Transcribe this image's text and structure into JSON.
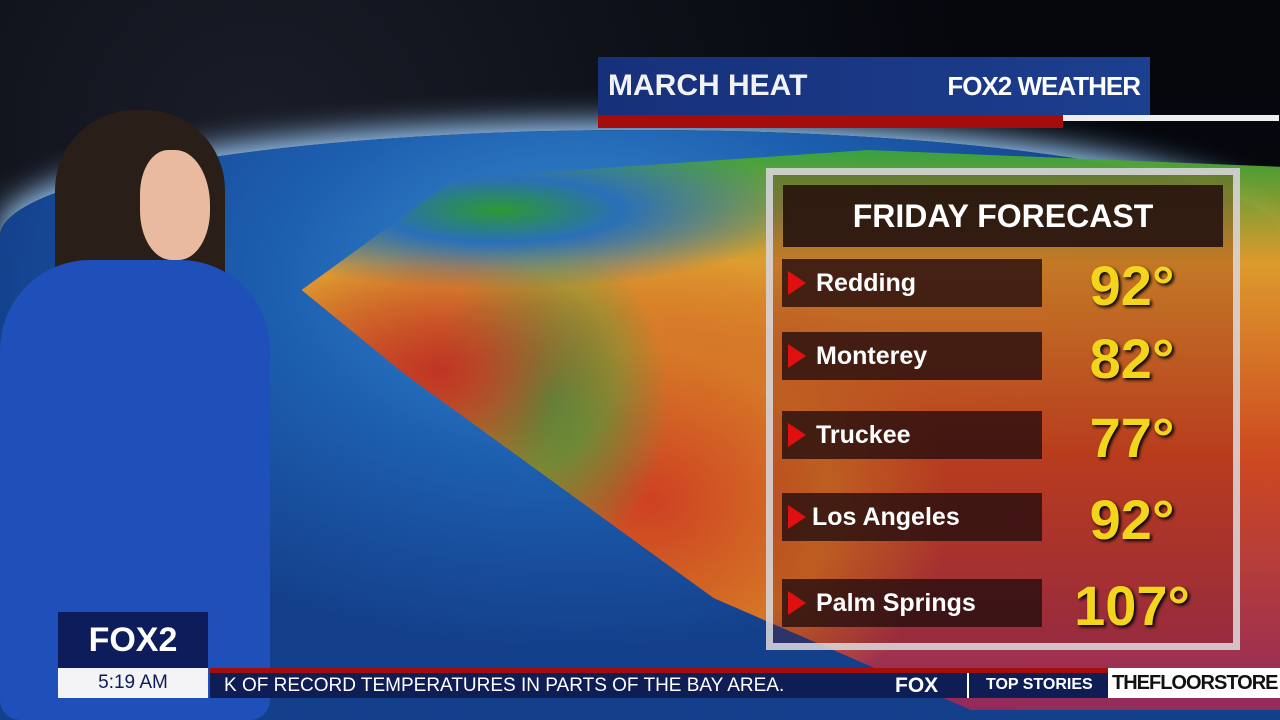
{
  "title_bar": {
    "title": "MARCH HEAT",
    "brand": "FOX2 WEATHER"
  },
  "forecast": {
    "header": "FRIDAY FORECAST",
    "rows": [
      {
        "city": "Redding",
        "temp": "92°"
      },
      {
        "city": "Monterey",
        "temp": "82°"
      },
      {
        "city": "Truckee",
        "temp": "77°"
      },
      {
        "city": "Los Angeles",
        "temp": "92°"
      },
      {
        "city": "Palm Springs",
        "temp": "107°"
      }
    ]
  },
  "lower_third": {
    "logo": "FOX2",
    "time": "5:19 AM",
    "ticker": "K OF RECORD TEMPERATURES IN PARTS OF THE BAY AREA.",
    "ticker_brand": "FOX",
    "section": "TOP STORIES",
    "sponsor": "THEFLOORSTORE"
  },
  "colors": {
    "temp": "#f3d51b",
    "navy": "#0f1d55",
    "red": "#a50d0d"
  }
}
